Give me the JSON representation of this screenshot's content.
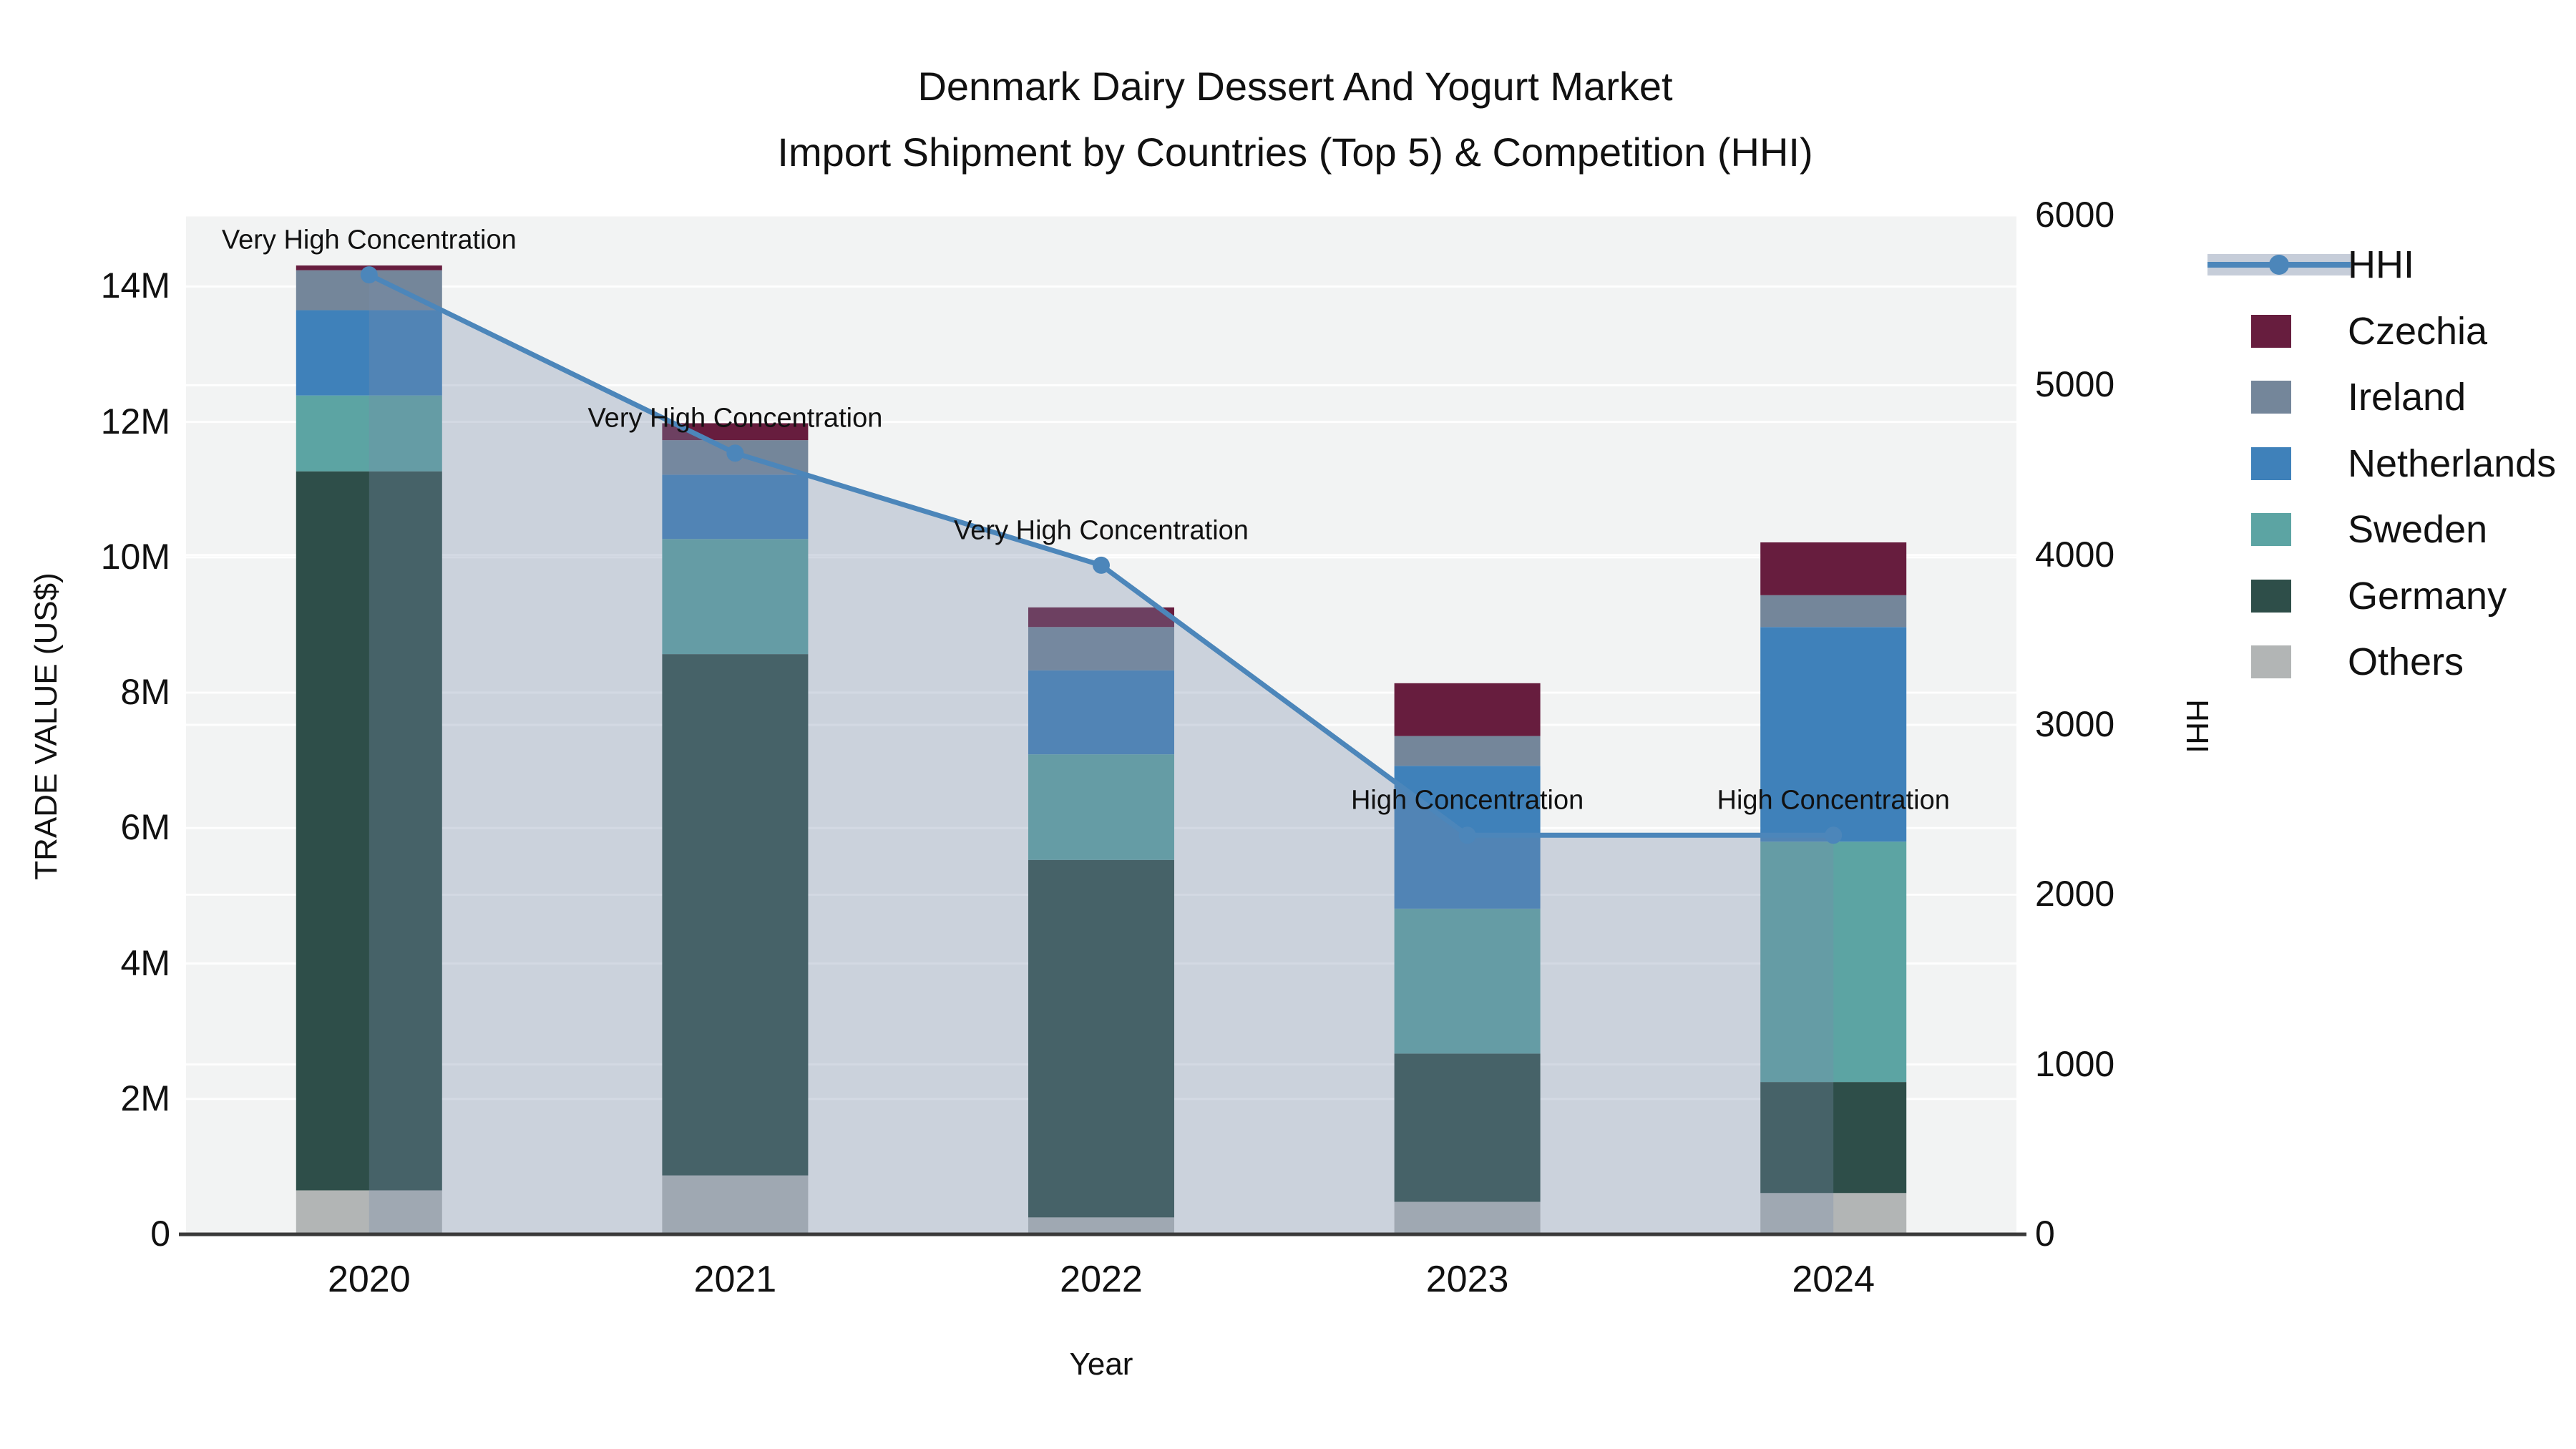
{
  "title": {
    "line1": "Denmark Dairy Dessert And Yogurt Market",
    "line2": "Import Shipment by Countries (Top 5) & Competition (HHI)"
  },
  "axes": {
    "x": {
      "label": "Year",
      "categories": [
        "2020",
        "2021",
        "2022",
        "2023",
        "2024"
      ]
    },
    "y_left": {
      "label": "TRADE VALUE (US$)",
      "tick_labels": [
        "0",
        "2M",
        "4M",
        "6M",
        "8M",
        "10M",
        "12M",
        "14M"
      ],
      "tick_values_m": [
        0,
        2,
        4,
        6,
        8,
        10,
        12,
        14
      ],
      "max_m": 15.05
    },
    "y_right": {
      "label": "HHI",
      "tick_labels": [
        "0",
        "1000",
        "2000",
        "3000",
        "4000",
        "5000",
        "6000"
      ],
      "tick_values": [
        0,
        1000,
        2000,
        3000,
        4000,
        5000,
        6000
      ],
      "max": 6000
    }
  },
  "chart_data": {
    "type": "bar+line",
    "categories": [
      "2020",
      "2021",
      "2022",
      "2023",
      "2024"
    ],
    "stacked_bar_unit": "million US$",
    "series": [
      {
        "name": "Others",
        "color": "#b2b5b5",
        "values": [
          0.65,
          0.87,
          0.25,
          0.48,
          0.61
        ]
      },
      {
        "name": "Germany",
        "color": "#2e4e49",
        "values": [
          10.62,
          7.7,
          5.28,
          2.19,
          1.64
        ]
      },
      {
        "name": "Sweden",
        "color": "#5ca4a3",
        "values": [
          1.12,
          1.7,
          1.56,
          2.14,
          3.55
        ]
      },
      {
        "name": "Netherlands",
        "color": "#3f81ba",
        "values": [
          1.26,
          0.95,
          1.24,
          2.11,
          3.17
        ]
      },
      {
        "name": "Ireland",
        "color": "#74869a",
        "values": [
          0.59,
          0.51,
          0.64,
          0.44,
          0.47
        ]
      },
      {
        "name": "Czechia",
        "color": "#671d3e",
        "values": [
          0.07,
          0.25,
          0.29,
          0.78,
          0.78
        ]
      }
    ],
    "line": {
      "name": "HHI",
      "values": [
        5650,
        4600,
        3940,
        2350,
        2350
      ],
      "color": "#4c86ba",
      "area_fill": "rgba(122,139,170,0.32)"
    },
    "annotations": [
      {
        "category": "2020",
        "text": "Very High Concentration"
      },
      {
        "category": "2021",
        "text": "Very High Concentration"
      },
      {
        "category": "2022",
        "text": "Very High Concentration"
      },
      {
        "category": "2023",
        "text": "High Concentration"
      },
      {
        "category": "2024",
        "text": "High Concentration"
      }
    ],
    "plot_bg": "#f2f3f3",
    "gridline_color": "rgba(255,255,255,0.9)",
    "axis_line_color": "#3a3a3a",
    "grid_on": true,
    "legend_position": "right"
  },
  "legend": {
    "items": [
      {
        "label": "HHI",
        "type": "line",
        "color": "#4c86ba",
        "band": "#c6cdd9"
      },
      {
        "label": "Czechia",
        "type": "patch",
        "color": "#671d3e"
      },
      {
        "label": "Ireland",
        "type": "patch",
        "color": "#74869a"
      },
      {
        "label": "Netherlands",
        "type": "patch",
        "color": "#3f81ba"
      },
      {
        "label": "Sweden",
        "type": "patch",
        "color": "#5ca4a3"
      },
      {
        "label": "Germany",
        "type": "patch",
        "color": "#2e4e49"
      },
      {
        "label": "Others",
        "type": "patch",
        "color": "#b2b5b5"
      }
    ]
  }
}
